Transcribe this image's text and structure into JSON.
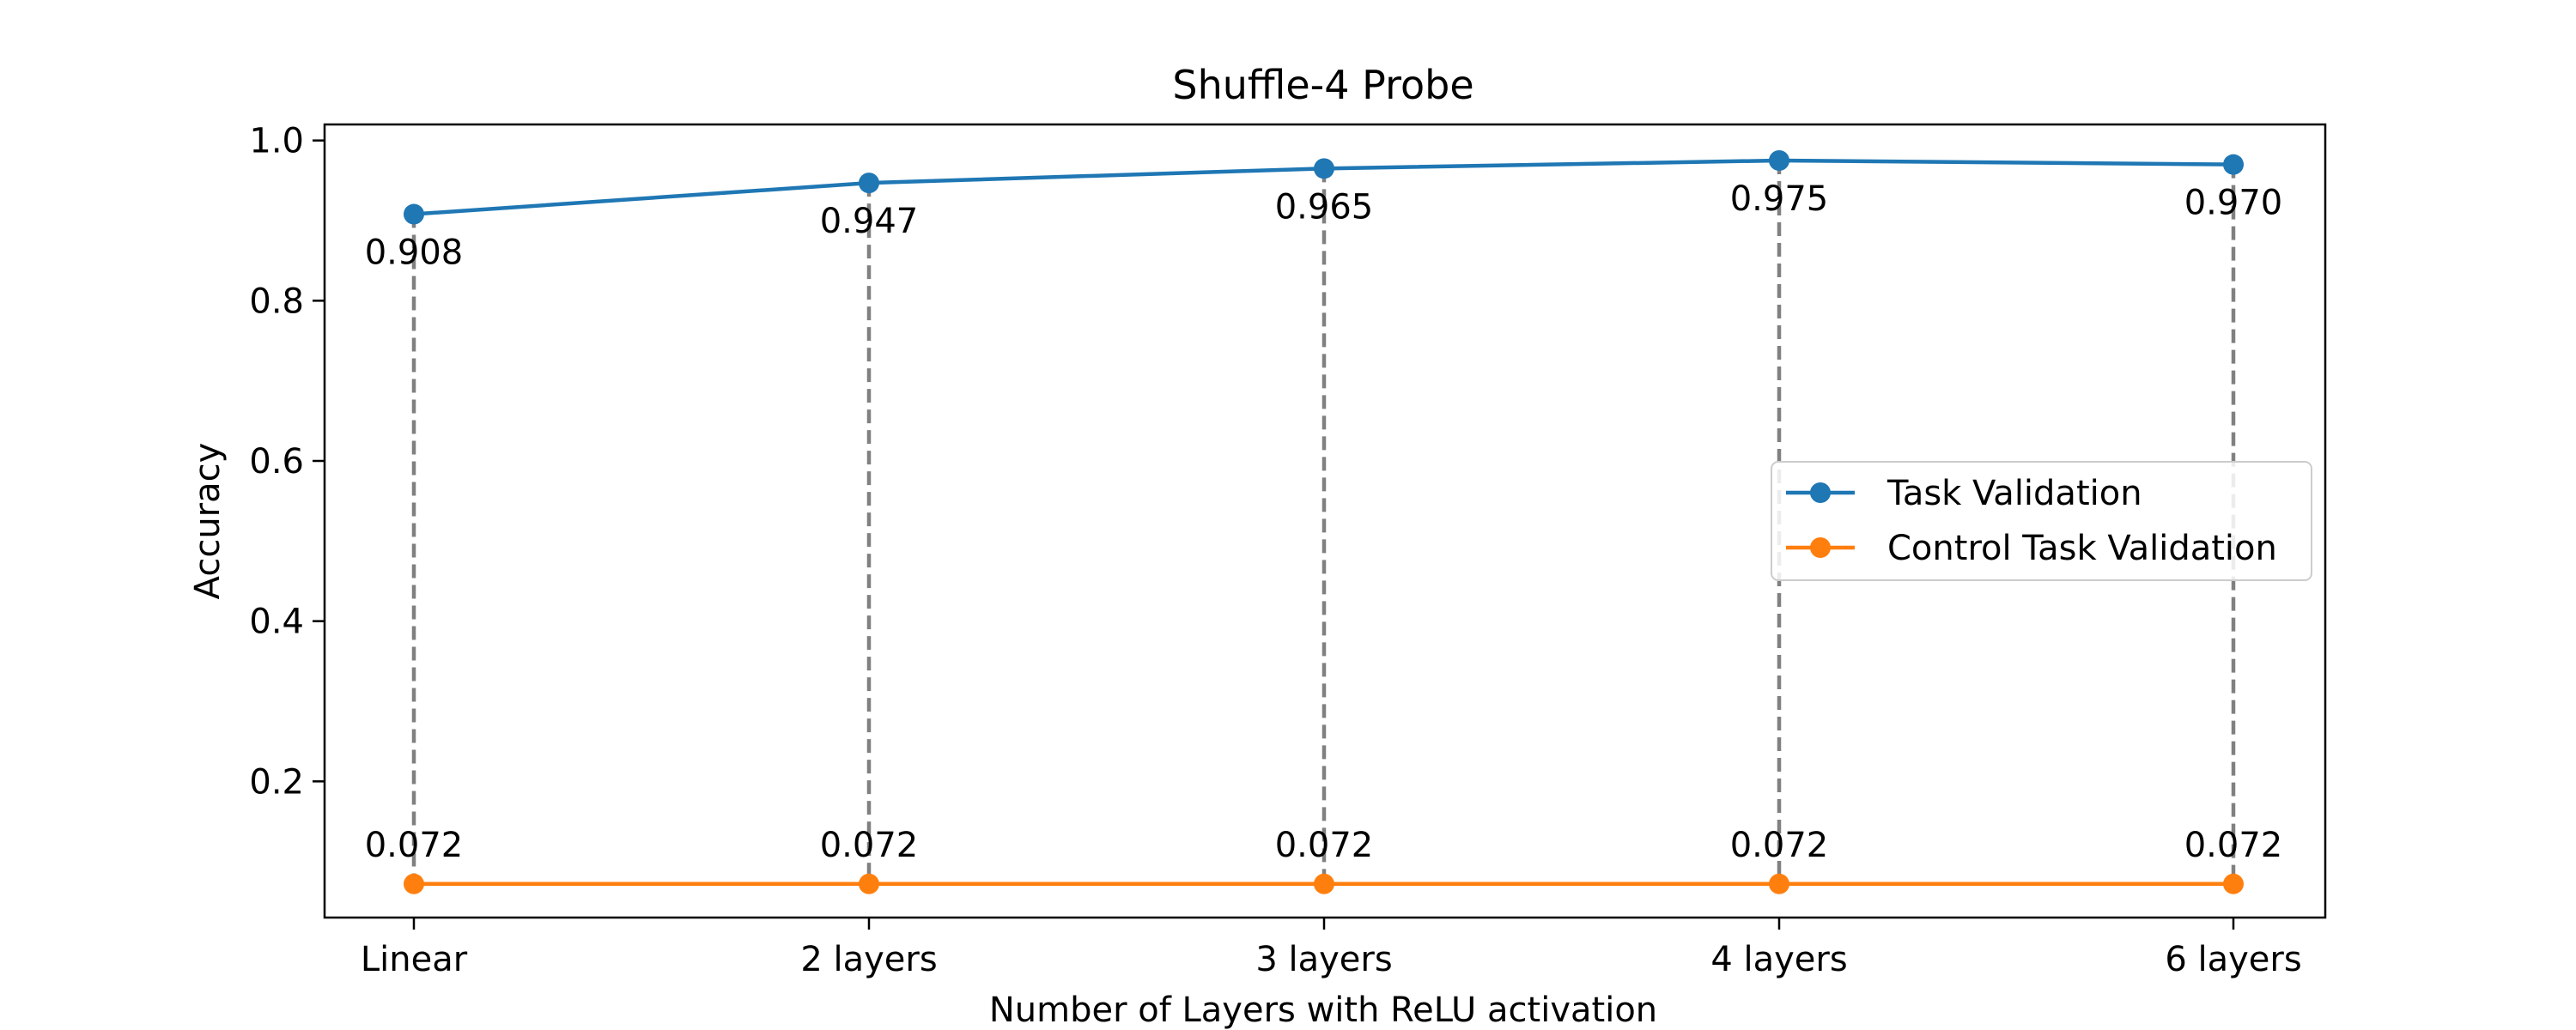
{
  "chart_data": {
    "type": "line",
    "title": "Shuffle-4 Probe",
    "xlabel": "Number of Layers with ReLU activation",
    "ylabel": "Accuracy",
    "categories": [
      "Linear",
      "2 layers",
      "3 layers",
      "4 layers",
      "6 layers"
    ],
    "ylim": [
      0.03,
      1.02
    ],
    "yticks": [
      0.2,
      0.4,
      0.6,
      0.8,
      1.0
    ],
    "ytick_labels": [
      "0.2",
      "0.4",
      "0.6",
      "0.8",
      "1.0"
    ],
    "grid": false,
    "legend_position": "center-right",
    "series": [
      {
        "name": "Task Validation",
        "values": [
          0.908,
          0.947,
          0.965,
          0.975,
          0.97
        ],
        "labels": [
          "0.908",
          "0.947",
          "0.965",
          "0.975",
          "0.970"
        ],
        "color": "#1f77b4"
      },
      {
        "name": "Control Task Validation",
        "values": [
          0.072,
          0.072,
          0.072,
          0.072,
          0.072
        ],
        "labels": [
          "0.072",
          "0.072",
          "0.072",
          "0.072",
          "0.072"
        ],
        "color": "#ff7f0e"
      }
    ],
    "connector_color": "#808080"
  }
}
